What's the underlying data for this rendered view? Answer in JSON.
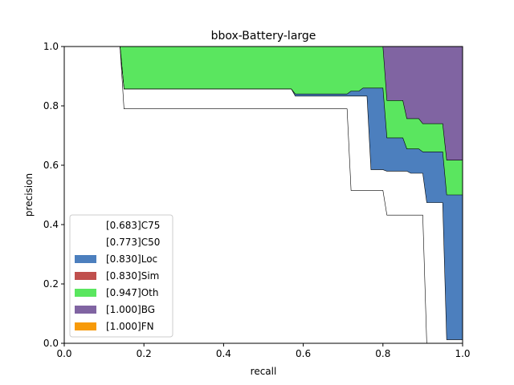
{
  "chart_data": {
    "type": "area",
    "title": "bbox-Battery-large",
    "xlabel": "recall",
    "ylabel": "precision",
    "xlim": [
      0,
      1
    ],
    "ylim": [
      0,
      1
    ],
    "xticks": [
      "0.0",
      "0.2",
      "0.4",
      "0.6",
      "0.8",
      "1.0"
    ],
    "yticks": [
      "0.0",
      "0.2",
      "0.4",
      "0.6",
      "0.8",
      "1.0"
    ],
    "grid": false,
    "legend_position": "lower-left",
    "series": [
      {
        "key": "C75",
        "name": "[0.683]C75",
        "color": "#ffffff",
        "points": [
          [
            0,
            1.0
          ],
          [
            0.14,
            1.0
          ],
          [
            0.15,
            0.79
          ],
          [
            0.71,
            0.79
          ],
          [
            0.72,
            0.515
          ],
          [
            0.8,
            0.515
          ],
          [
            0.81,
            0.432
          ],
          [
            0.9,
            0.432
          ],
          [
            0.91,
            0.0
          ],
          [
            1.0,
            0.0
          ]
        ]
      },
      {
        "key": "C50",
        "name": "[0.773]C50",
        "color": "#ffffff",
        "points": [
          [
            0,
            1.0
          ],
          [
            0.14,
            1.0
          ],
          [
            0.15,
            0.857
          ],
          [
            0.57,
            0.857
          ],
          [
            0.58,
            0.833
          ],
          [
            0.76,
            0.833
          ],
          [
            0.77,
            0.585
          ],
          [
            0.8,
            0.585
          ],
          [
            0.81,
            0.58
          ],
          [
            0.86,
            0.58
          ],
          [
            0.87,
            0.573
          ],
          [
            0.9,
            0.573
          ],
          [
            0.91,
            0.474
          ],
          [
            0.95,
            0.474
          ],
          [
            0.96,
            0.012
          ],
          [
            1.0,
            0.012
          ]
        ]
      },
      {
        "key": "Loc",
        "name": "[0.830]Loc",
        "color": "#4c7fbe",
        "points": [
          [
            0,
            1.0
          ],
          [
            0.14,
            1.0
          ],
          [
            0.15,
            0.857
          ],
          [
            0.57,
            0.857
          ],
          [
            0.58,
            0.84
          ],
          [
            0.71,
            0.84
          ],
          [
            0.72,
            0.85
          ],
          [
            0.74,
            0.85
          ],
          [
            0.75,
            0.86
          ],
          [
            0.8,
            0.86
          ],
          [
            0.81,
            0.692
          ],
          [
            0.85,
            0.692
          ],
          [
            0.86,
            0.655
          ],
          [
            0.89,
            0.655
          ],
          [
            0.9,
            0.645
          ],
          [
            0.95,
            0.645
          ],
          [
            0.96,
            0.5
          ],
          [
            1.0,
            0.5
          ]
        ]
      },
      {
        "key": "Sim",
        "name": "[0.830]Sim",
        "color": "#c0504d",
        "points": []
      },
      {
        "key": "Oth",
        "name": "[0.947]Oth",
        "color": "#5ae65f",
        "points": [
          [
            0,
            1.0
          ],
          [
            0.8,
            1.0
          ],
          [
            0.81,
            0.818
          ],
          [
            0.85,
            0.818
          ],
          [
            0.86,
            0.757
          ],
          [
            0.89,
            0.757
          ],
          [
            0.9,
            0.74
          ],
          [
            0.95,
            0.74
          ],
          [
            0.96,
            0.617
          ],
          [
            1.0,
            0.617
          ]
        ]
      },
      {
        "key": "BG",
        "name": "[1.000]BG",
        "color": "#8064a2",
        "points": [
          [
            0,
            1.0
          ],
          [
            1.0,
            1.0
          ]
        ]
      },
      {
        "key": "FN",
        "name": "[1.000]FN",
        "color": "#f79a09",
        "points": []
      }
    ]
  }
}
